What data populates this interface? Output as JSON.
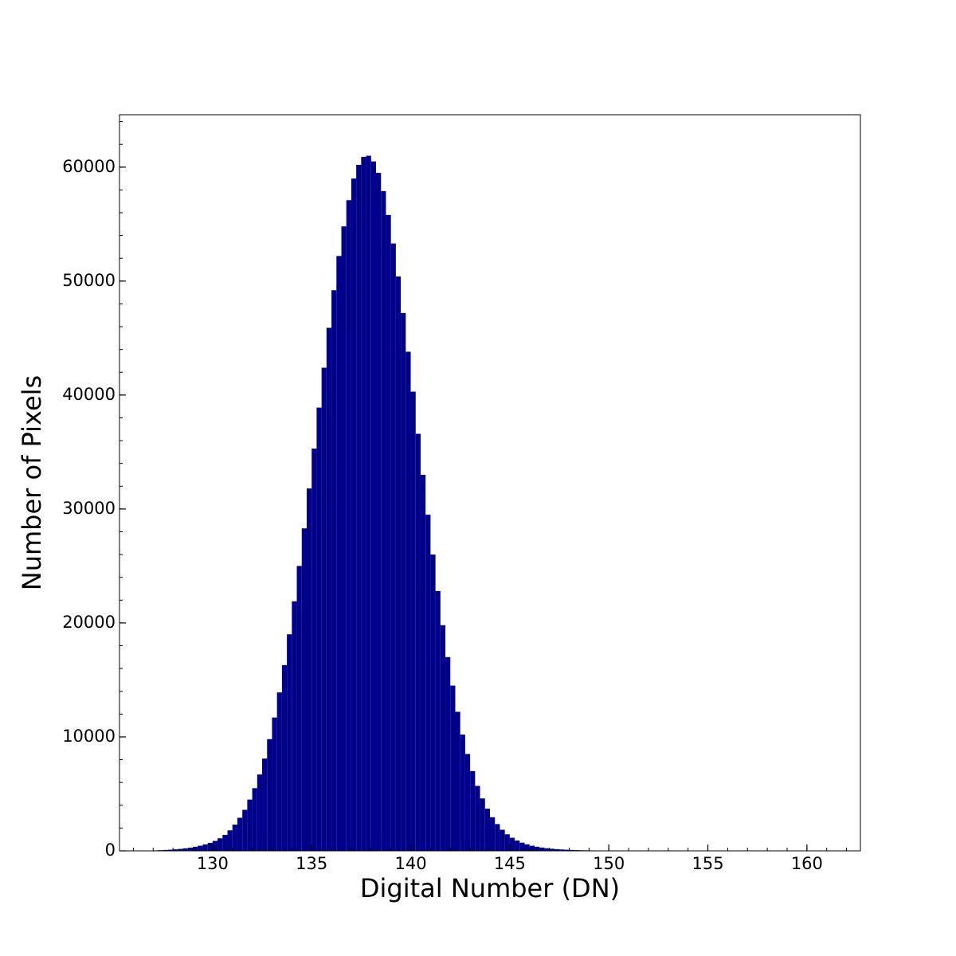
{
  "chart_data": {
    "type": "histogram",
    "xlabel": "Digital Number (DN)",
    "ylabel": "Number of Pixels",
    "color": "#00008b",
    "xlim": [
      125.3,
      162.7
    ],
    "ylim": [
      0,
      64600
    ],
    "xticks": [
      130,
      135,
      140,
      145,
      150,
      155,
      160
    ],
    "yticks": [
      0,
      10000,
      20000,
      30000,
      40000,
      50000,
      60000
    ],
    "bins": [
      127,
      127.25,
      127.5,
      127.75,
      128,
      128.25,
      128.5,
      128.75,
      129,
      129.25,
      129.5,
      129.75,
      130,
      130.25,
      130.5,
      130.75,
      131,
      131.25,
      131.5,
      131.75,
      132,
      132.25,
      132.5,
      132.75,
      133,
      133.25,
      133.5,
      133.75,
      134,
      134.25,
      134.5,
      134.75,
      135,
      135.25,
      135.5,
      135.75,
      136,
      136.25,
      136.5,
      136.75,
      137,
      137.25,
      137.5,
      137.75,
      138,
      138.25,
      138.5,
      138.75,
      139,
      139.25,
      139.5,
      139.75,
      140,
      140.25,
      140.5,
      140.75,
      141,
      141.25,
      141.5,
      141.75,
      142,
      142.25,
      142.5,
      142.75,
      143,
      143.25,
      143.5,
      143.75,
      144,
      144.25,
      144.5,
      144.75,
      145,
      145.25,
      145.5,
      145.75,
      146,
      146.25,
      146.5,
      146.75,
      147,
      147.25,
      147.5,
      147.75,
      148,
      148.25,
      148.5,
      148.75,
      149,
      149.25,
      149.5,
      149.75,
      150,
      150.25,
      150.5,
      150.75,
      151,
      151.25,
      151.5,
      151.75,
      152,
      152.25,
      152.5,
      152.75,
      153,
      153.25,
      153.5,
      153.75,
      154,
      154.25,
      154.5,
      154.75,
      155,
      155.25,
      155.5,
      155.75,
      156,
      156.25,
      156.5,
      156.75,
      157,
      157.25,
      157.5,
      157.75,
      158,
      158.25,
      158.5,
      158.75,
      159,
      159.25,
      159.5,
      159.75,
      160,
      160.25,
      160.5,
      160.75,
      161
    ],
    "counts": [
      40,
      60,
      80,
      100,
      130,
      170,
      220,
      280,
      360,
      450,
      560,
      700,
      870,
      1100,
      1400,
      1800,
      2300,
      2900,
      3600,
      4500,
      5500,
      6700,
      8100,
      9800,
      11700,
      13900,
      16300,
      19000,
      21900,
      25000,
      28300,
      31800,
      35300,
      38900,
      42400,
      45900,
      49200,
      52200,
      54800,
      57100,
      59000,
      60200,
      60900,
      61000,
      60500,
      59500,
      57900,
      55800,
      53300,
      50400,
      47200,
      43800,
      40300,
      36600,
      33000,
      29500,
      26000,
      22800,
      19800,
      17000,
      14500,
      12200,
      10200,
      8500,
      7000,
      5700,
      4600,
      3700,
      2950,
      2350,
      1850,
      1450,
      1150,
      900,
      720,
      570,
      450,
      360,
      290,
      230,
      185,
      150,
      120,
      100,
      80,
      65,
      55,
      45,
      38,
      32,
      27,
      23,
      20,
      17,
      15,
      13,
      11,
      10,
      9,
      8,
      7,
      6,
      6,
      5,
      5,
      4,
      4,
      3,
      3,
      3,
      2,
      2,
      2,
      2,
      1,
      1,
      1,
      1,
      1,
      1,
      1,
      0,
      1,
      0,
      0,
      1,
      0,
      0,
      0,
      0,
      1,
      0,
      0,
      0,
      0,
      1
    ]
  }
}
